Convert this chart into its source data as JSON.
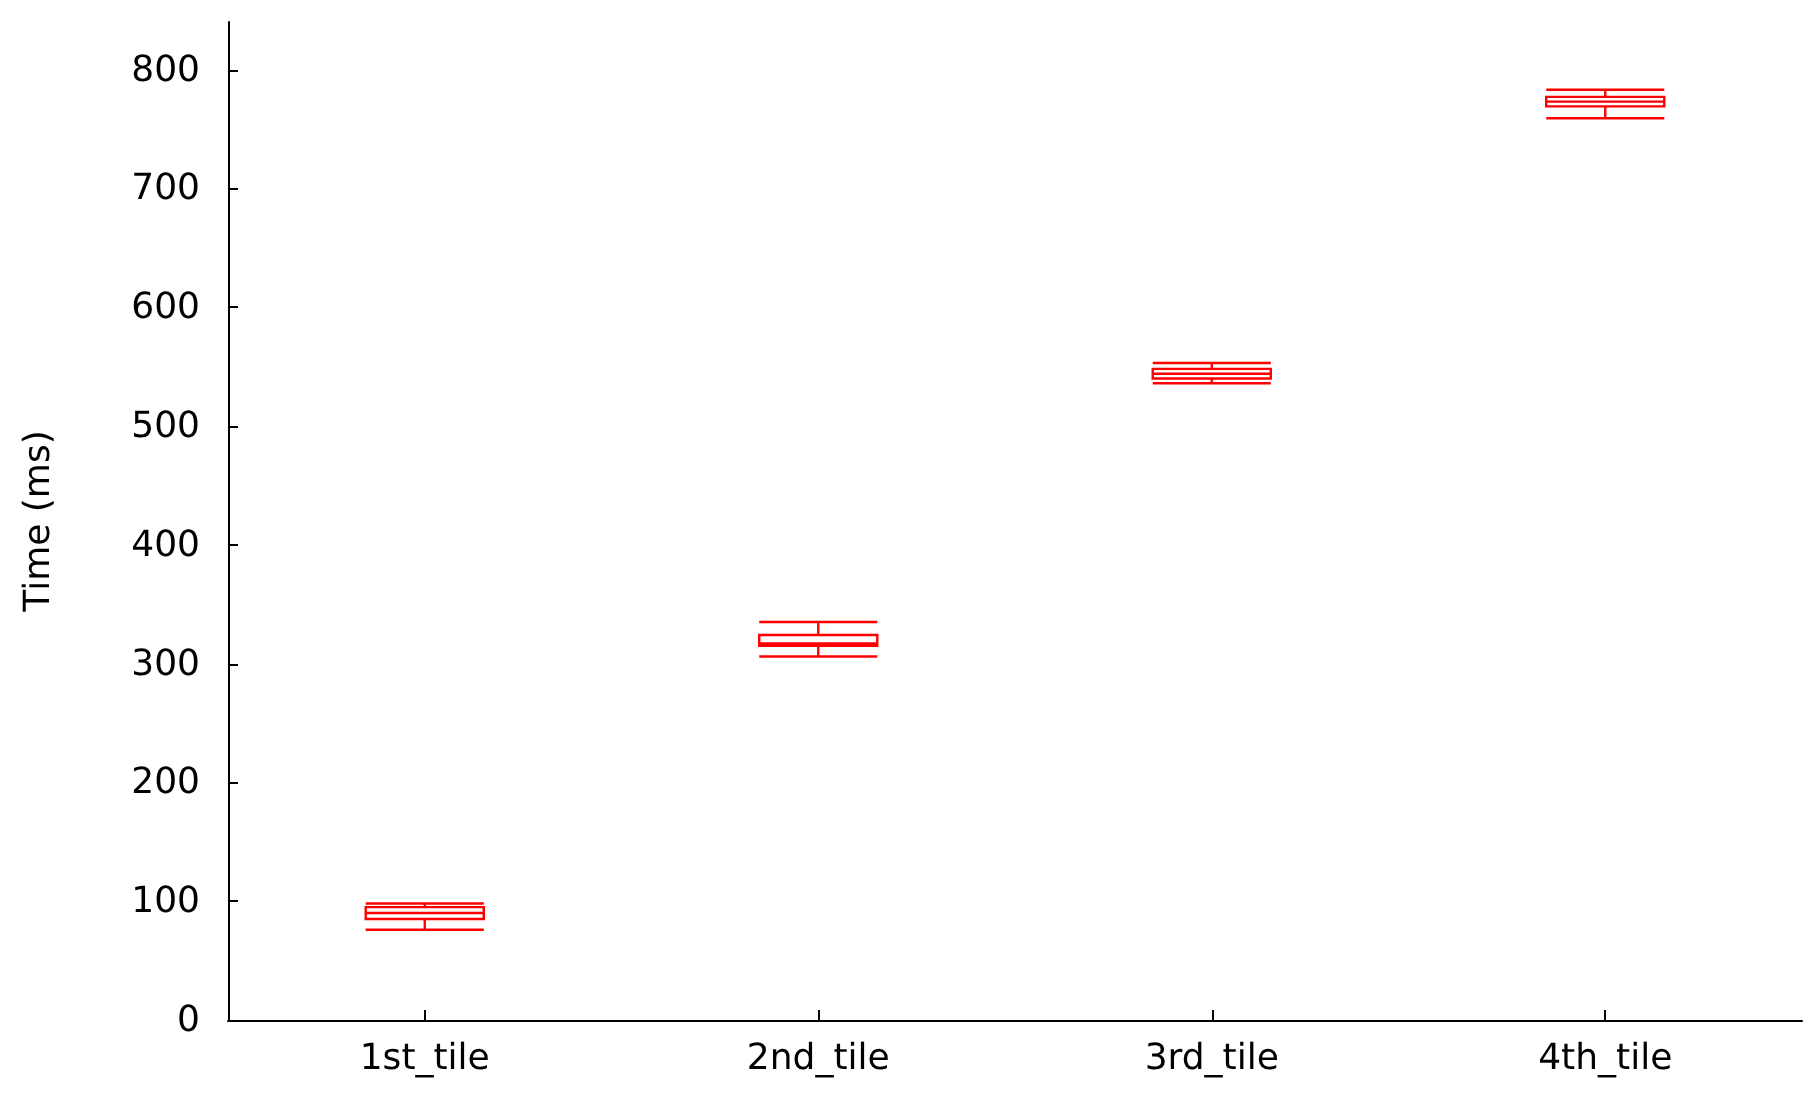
{
  "chart_data": {
    "type": "box",
    "ylabel": "Time (ms)",
    "categories": [
      "1st_tile",
      "2nd_tile",
      "3rd_tile",
      "4th_tile"
    ],
    "series": [
      {
        "color": "#ff0000",
        "boxes": [
          {
            "low": 76,
            "q1": 85,
            "median": 90,
            "q3": 95,
            "high": 98
          },
          {
            "low": 306,
            "q1": 315,
            "median": 317,
            "q3": 324,
            "high": 335
          },
          {
            "low": 536,
            "q1": 540,
            "median": 544,
            "q3": 548,
            "high": 553
          },
          {
            "low": 759,
            "q1": 769,
            "median": 773,
            "q3": 777,
            "high": 783
          }
        ]
      }
    ],
    "ylim": [
      0,
      840
    ],
    "yticks": [
      0,
      100,
      200,
      300,
      400,
      500,
      600,
      700,
      800
    ],
    "grid": false
  }
}
